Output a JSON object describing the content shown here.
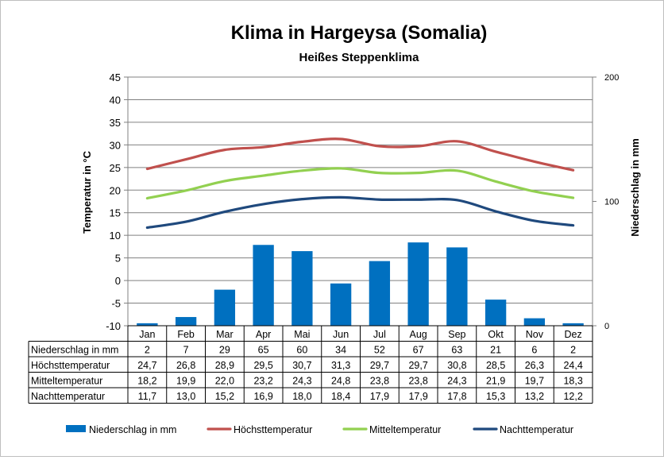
{
  "chart_data": {
    "type": "bar+line",
    "title": "Klima in Hargeysa (Somalia)",
    "subtitle": "Heißes Steppenklima",
    "ylabel_left": "Temperatur in °C",
    "ylabel_right": "Niederschlag in mm",
    "ylim_left": [
      -10,
      45
    ],
    "yticks_left": [
      "45",
      "40",
      "35",
      "30",
      "25",
      "20",
      "15",
      "10",
      "5",
      "0",
      "-5",
      "-10"
    ],
    "ylim_right": [
      0,
      200
    ],
    "yticks_right": [
      "200",
      "100",
      "0"
    ],
    "grid": true,
    "legend_position": "bottom",
    "categories": [
      "Jan",
      "Feb",
      "Mar",
      "Apr",
      "Mai",
      "Jun",
      "Jul",
      "Aug",
      "Sep",
      "Okt",
      "Nov",
      "Dez"
    ],
    "series": [
      {
        "name": "Niederschlag in mm",
        "type": "bar",
        "axis": "right",
        "color": "#0070C0",
        "values": [
          2,
          7,
          29,
          65,
          60,
          34,
          52,
          67,
          63,
          21,
          6,
          2
        ],
        "labels": [
          "2",
          "7",
          "29",
          "65",
          "60",
          "34",
          "52",
          "67",
          "63",
          "21",
          "6",
          "2"
        ]
      },
      {
        "name": "Höchsttemperatur",
        "type": "line",
        "axis": "left",
        "color": "#C0504D",
        "values": [
          24.7,
          26.8,
          28.9,
          29.5,
          30.7,
          31.3,
          29.7,
          29.7,
          30.8,
          28.5,
          26.3,
          24.4
        ],
        "labels": [
          "24,7",
          "26,8",
          "28,9",
          "29,5",
          "30,7",
          "31,3",
          "29,7",
          "29,7",
          "30,8",
          "28,5",
          "26,3",
          "24,4"
        ]
      },
      {
        "name": "Mitteltemperatur",
        "type": "line",
        "axis": "left",
        "color": "#92D050",
        "values": [
          18.2,
          19.9,
          22.0,
          23.2,
          24.3,
          24.8,
          23.8,
          23.8,
          24.3,
          21.9,
          19.7,
          18.3
        ],
        "labels": [
          "18,2",
          "19,9",
          "22,0",
          "23,2",
          "24,3",
          "24,8",
          "23,8",
          "23,8",
          "24,3",
          "21,9",
          "19,7",
          "18,3"
        ]
      },
      {
        "name": "Nachttemperatur",
        "type": "line",
        "axis": "left",
        "color": "#1F497D",
        "values": [
          11.7,
          13.0,
          15.2,
          16.9,
          18.0,
          18.4,
          17.9,
          17.9,
          17.8,
          15.3,
          13.2,
          12.2
        ],
        "labels": [
          "11,7",
          "13,0",
          "15,2",
          "16,9",
          "18,0",
          "18,4",
          "17,9",
          "17,9",
          "17,8",
          "15,3",
          "13,2",
          "12,2"
        ]
      }
    ]
  }
}
